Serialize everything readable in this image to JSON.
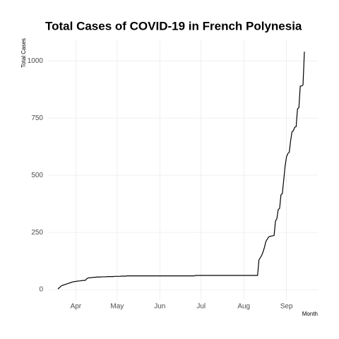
{
  "chart_data": {
    "type": "line",
    "title": "Total Cases of COVID-19 in French Polynesia",
    "x_label": "Month",
    "y_label": "Total Cases",
    "categories": [
      null,
      null,
      null,
      null,
      null,
      null,
      null,
      null,
      null,
      null,
      null,
      null,
      null,
      "Apr",
      null,
      null,
      null,
      null,
      null,
      null,
      null,
      null,
      null,
      null,
      null,
      null,
      null,
      null,
      null,
      null,
      null,
      null,
      null,
      null,
      null,
      null,
      null,
      null,
      null,
      null,
      null,
      null,
      null,
      "May",
      null,
      null,
      null,
      null,
      null,
      null,
      null,
      null,
      null,
      null,
      null,
      null,
      null,
      null,
      null,
      null,
      null,
      null,
      null,
      null,
      null,
      null,
      null,
      null,
      null,
      null,
      null,
      null,
      null,
      null,
      "Jun",
      null,
      null,
      null,
      null,
      null,
      null,
      null,
      null,
      null,
      null,
      null,
      null,
      null,
      null,
      null,
      null,
      null,
      null,
      null,
      null,
      null,
      null,
      null,
      null,
      null,
      null,
      null,
      null,
      null,
      "Jul",
      null,
      null,
      null,
      null,
      null,
      null,
      null,
      null,
      null,
      null,
      null,
      null,
      null,
      null,
      null,
      null,
      null,
      null,
      null,
      null,
      null,
      null,
      null,
      null,
      null,
      null,
      null,
      null,
      null,
      null,
      "Aug",
      null,
      null,
      null,
      null,
      null,
      null,
      null,
      null,
      null,
      null,
      null,
      null,
      null,
      null,
      null,
      null,
      null,
      null,
      null,
      null,
      null,
      null,
      null,
      null,
      null,
      null,
      null,
      null,
      null,
      null,
      "Sep",
      null,
      null,
      null,
      null,
      null,
      null,
      null,
      null,
      null,
      null,
      null,
      null,
      null
    ],
    "values": [
      3,
      8,
      14,
      18,
      20,
      22,
      24,
      26,
      28,
      30,
      32,
      34,
      35,
      36,
      37,
      38,
      38,
      39,
      40,
      40,
      41,
      48,
      51,
      52,
      52,
      53,
      54,
      54,
      55,
      55,
      55,
      55,
      56,
      56,
      56,
      56,
      57,
      57,
      57,
      57,
      57,
      58,
      58,
      58,
      58,
      58,
      59,
      59,
      59,
      59,
      60,
      60,
      60,
      60,
      60,
      60,
      60,
      60,
      60,
      60,
      60,
      60,
      60,
      60,
      60,
      60,
      60,
      60,
      60,
      60,
      60,
      60,
      60,
      60,
      60,
      60,
      60,
      60,
      60,
      60,
      60,
      60,
      60,
      60,
      60,
      60,
      60,
      60,
      60,
      60,
      60,
      60,
      60,
      60,
      60,
      60,
      60,
      60,
      60,
      60,
      62,
      62,
      62,
      62,
      62,
      62,
      62,
      62,
      62,
      62,
      62,
      62,
      62,
      62,
      62,
      62,
      62,
      62,
      62,
      62,
      62,
      62,
      62,
      62,
      62,
      62,
      62,
      62,
      62,
      62,
      62,
      62,
      62,
      62,
      62,
      62,
      62,
      62,
      62,
      62,
      62,
      62,
      62,
      62,
      62,
      62,
      130,
      140,
      150,
      165,
      185,
      210,
      220,
      230,
      233,
      234,
      235,
      237,
      300,
      310,
      350,
      355,
      415,
      420,
      480,
      540,
      580,
      595,
      600,
      650,
      690,
      695,
      710,
      712,
      790,
      795,
      890,
      890,
      895,
      1040
    ],
    "color": "#000000",
    "ylim": [
      -46,
      1090
    ],
    "yticks": [
      0,
      250,
      500,
      750,
      1000
    ],
    "grid": true
  }
}
